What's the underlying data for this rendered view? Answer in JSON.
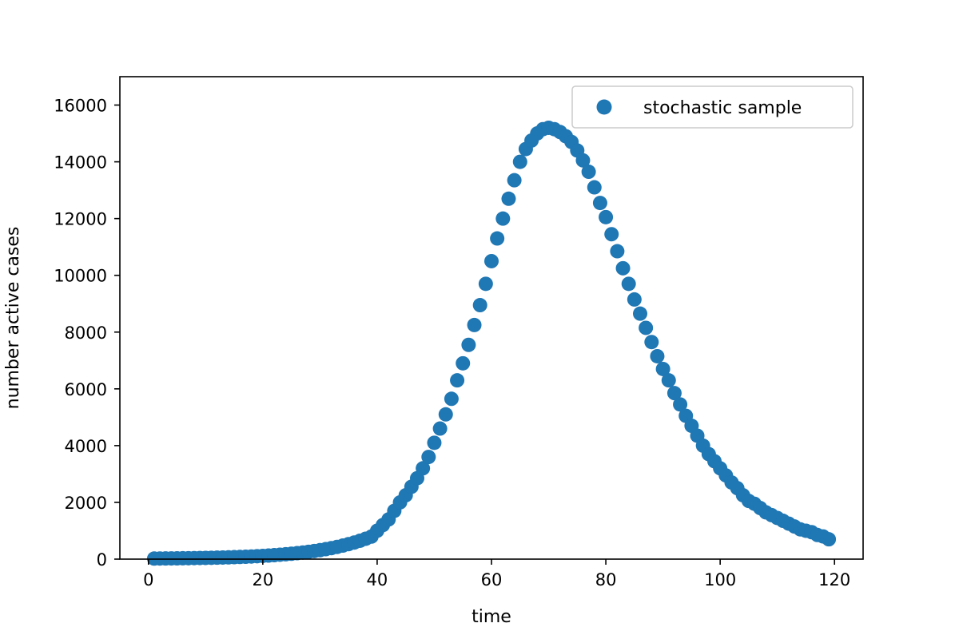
{
  "chart_data": {
    "type": "scatter",
    "xlabel": "time",
    "ylabel": "number active cases",
    "xlim": [
      -5,
      125
    ],
    "ylim": [
      0,
      17000
    ],
    "xticks": [
      0,
      20,
      40,
      60,
      80,
      100,
      120
    ],
    "yticks": [
      0,
      2000,
      4000,
      6000,
      8000,
      10000,
      12000,
      14000,
      16000
    ],
    "grid": false,
    "legend_position": "top-right",
    "marker_color": "#1f77b4",
    "series": [
      {
        "name": "stochastic sample",
        "x": [
          1,
          2,
          3,
          4,
          5,
          6,
          7,
          8,
          9,
          10,
          11,
          12,
          13,
          14,
          15,
          16,
          17,
          18,
          19,
          20,
          21,
          22,
          23,
          24,
          25,
          26,
          27,
          28,
          29,
          30,
          31,
          32,
          33,
          34,
          35,
          36,
          37,
          38,
          39,
          40,
          41,
          42,
          43,
          44,
          45,
          46,
          47,
          48,
          49,
          50,
          51,
          52,
          53,
          54,
          55,
          56,
          57,
          58,
          59,
          60,
          61,
          62,
          63,
          64,
          65,
          66,
          67,
          68,
          69,
          70,
          71,
          72,
          73,
          74,
          75,
          76,
          77,
          78,
          79,
          80,
          81,
          82,
          83,
          84,
          85,
          86,
          87,
          88,
          89,
          90,
          91,
          92,
          93,
          94,
          95,
          96,
          97,
          98,
          99,
          100,
          101,
          102,
          103,
          104,
          105,
          106,
          107,
          108,
          109,
          110,
          111,
          112,
          113,
          114,
          115,
          116,
          117,
          118,
          119
        ],
        "y": [
          20,
          22,
          24,
          26,
          28,
          30,
          33,
          36,
          39,
          43,
          47,
          52,
          57,
          63,
          69,
          76,
          84,
          93,
          103,
          114,
          126,
          140,
          155,
          171,
          190,
          210,
          233,
          258,
          285,
          316,
          350,
          388,
          430,
          477,
          528,
          585,
          648,
          718,
          795,
          1000,
          1200,
          1400,
          1700,
          2000,
          2250,
          2550,
          2850,
          3200,
          3600,
          4100,
          4600,
          5100,
          5650,
          6300,
          6900,
          7550,
          8250,
          8950,
          9700,
          10500,
          11300,
          12000,
          12700,
          13350,
          14000,
          14450,
          14750,
          15000,
          15150,
          15200,
          15150,
          15050,
          14900,
          14700,
          14400,
          14050,
          13650,
          13100,
          12550,
          12050,
          11450,
          10850,
          10250,
          9700,
          9150,
          8650,
          8150,
          7650,
          7150,
          6700,
          6300,
          5850,
          5450,
          5050,
          4700,
          4350,
          4000,
          3700,
          3450,
          3200,
          2950,
          2700,
          2500,
          2250,
          2050,
          1950,
          1800,
          1650,
          1550,
          1450,
          1350,
          1250,
          1150,
          1050,
          1000,
          950,
          850,
          800,
          700
        ]
      }
    ]
  }
}
